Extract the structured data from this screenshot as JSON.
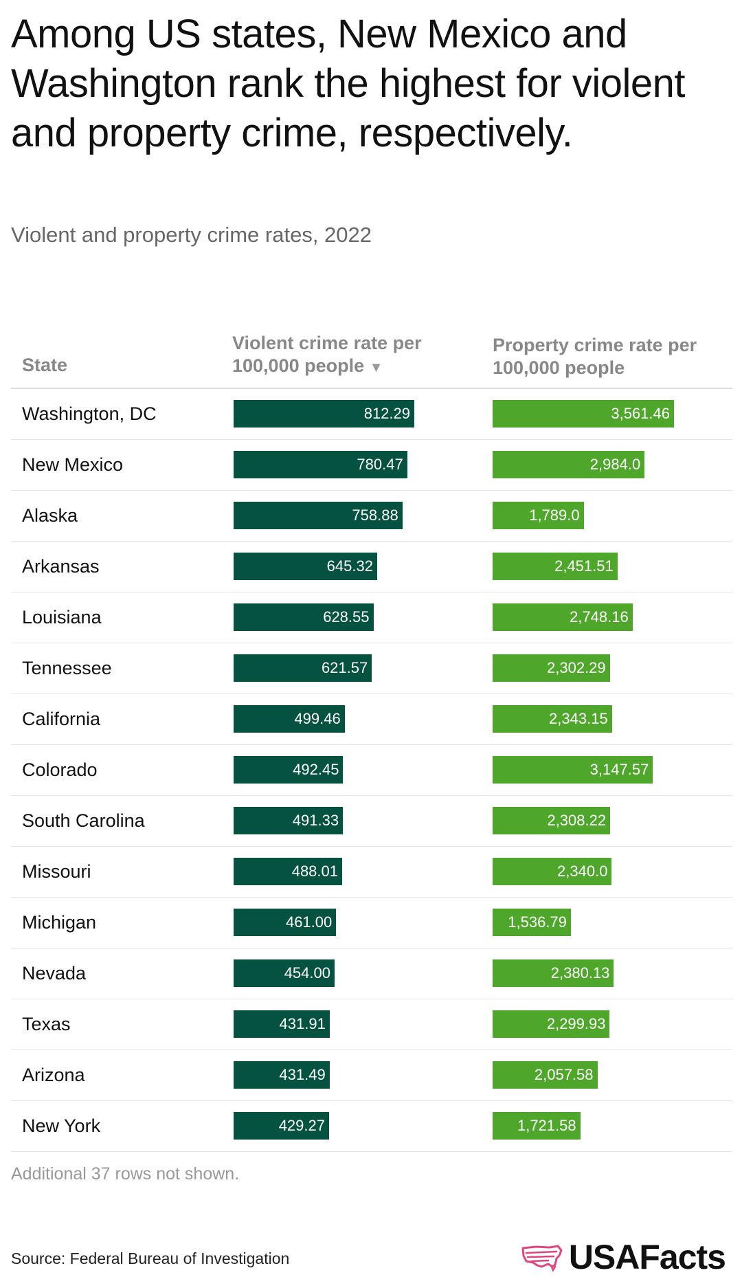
{
  "title": "Among US states, New Mexico and Washington rank the highest for violent and property crime, respectively.",
  "subtitle": "Violent and property crime rates, 2022",
  "columns": {
    "state": "State",
    "violent": "Violent crime rate per 100,000 people",
    "property": "Property crime rate per 100,000 people",
    "sort_icon": "▼"
  },
  "note": "Additional 37 rows not shown.",
  "source": "Source: Federal Bureau of Investigation",
  "logo": {
    "text": "USAFacts",
    "icon": "us-map-icon"
  },
  "colors": {
    "violent": "#04523f",
    "property": "#4ea72a",
    "logo_icon": "#e0457b"
  },
  "chart_data": {
    "type": "table",
    "title": "Among US states, New Mexico and Washington rank the highest for violent and property crime, respectively.",
    "subtitle": "Violent and property crime rates, 2022",
    "sorted_by": "Violent crime rate per 100,000 people",
    "sort_order": "descending",
    "rows": [
      {
        "state": "Washington, DC",
        "violent": 812.29,
        "violent_label": "812.29",
        "property": 3561.46,
        "property_label": "3,561.46"
      },
      {
        "state": "New Mexico",
        "violent": 780.47,
        "violent_label": "780.47",
        "property": 2984.0,
        "property_label": "2,984.0"
      },
      {
        "state": "Alaska",
        "violent": 758.88,
        "violent_label": "758.88",
        "property": 1789.0,
        "property_label": "1,789.0"
      },
      {
        "state": "Arkansas",
        "violent": 645.32,
        "violent_label": "645.32",
        "property": 2451.51,
        "property_label": "2,451.51"
      },
      {
        "state": "Louisiana",
        "violent": 628.55,
        "violent_label": "628.55",
        "property": 2748.16,
        "property_label": "2,748.16"
      },
      {
        "state": "Tennessee",
        "violent": 621.57,
        "violent_label": "621.57",
        "property": 2302.29,
        "property_label": "2,302.29"
      },
      {
        "state": "California",
        "violent": 499.46,
        "violent_label": "499.46",
        "property": 2343.15,
        "property_label": "2,343.15"
      },
      {
        "state": "Colorado",
        "violent": 492.45,
        "violent_label": "492.45",
        "property": 3147.57,
        "property_label": "3,147.57"
      },
      {
        "state": "South Carolina",
        "violent": 491.33,
        "violent_label": "491.33",
        "property": 2308.22,
        "property_label": "2,308.22"
      },
      {
        "state": "Missouri",
        "violent": 488.01,
        "violent_label": "488.01",
        "property": 2340.0,
        "property_label": "2,340.0"
      },
      {
        "state": "Michigan",
        "violent": 461.0,
        "violent_label": "461.00",
        "property": 1536.79,
        "property_label": "1,536.79"
      },
      {
        "state": "Nevada",
        "violent": 454.0,
        "violent_label": "454.00",
        "property": 2380.13,
        "property_label": "2,380.13"
      },
      {
        "state": "Texas",
        "violent": 431.91,
        "violent_label": "431.91",
        "property": 2299.93,
        "property_label": "2,299.93"
      },
      {
        "state": "Arizona",
        "violent": 431.49,
        "violent_label": "431.49",
        "property": 2057.58,
        "property_label": "2,057.58"
      },
      {
        "state": "New York",
        "violent": 429.27,
        "violent_label": "429.27",
        "property": 1721.58,
        "property_label": "1,721.58"
      }
    ]
  }
}
